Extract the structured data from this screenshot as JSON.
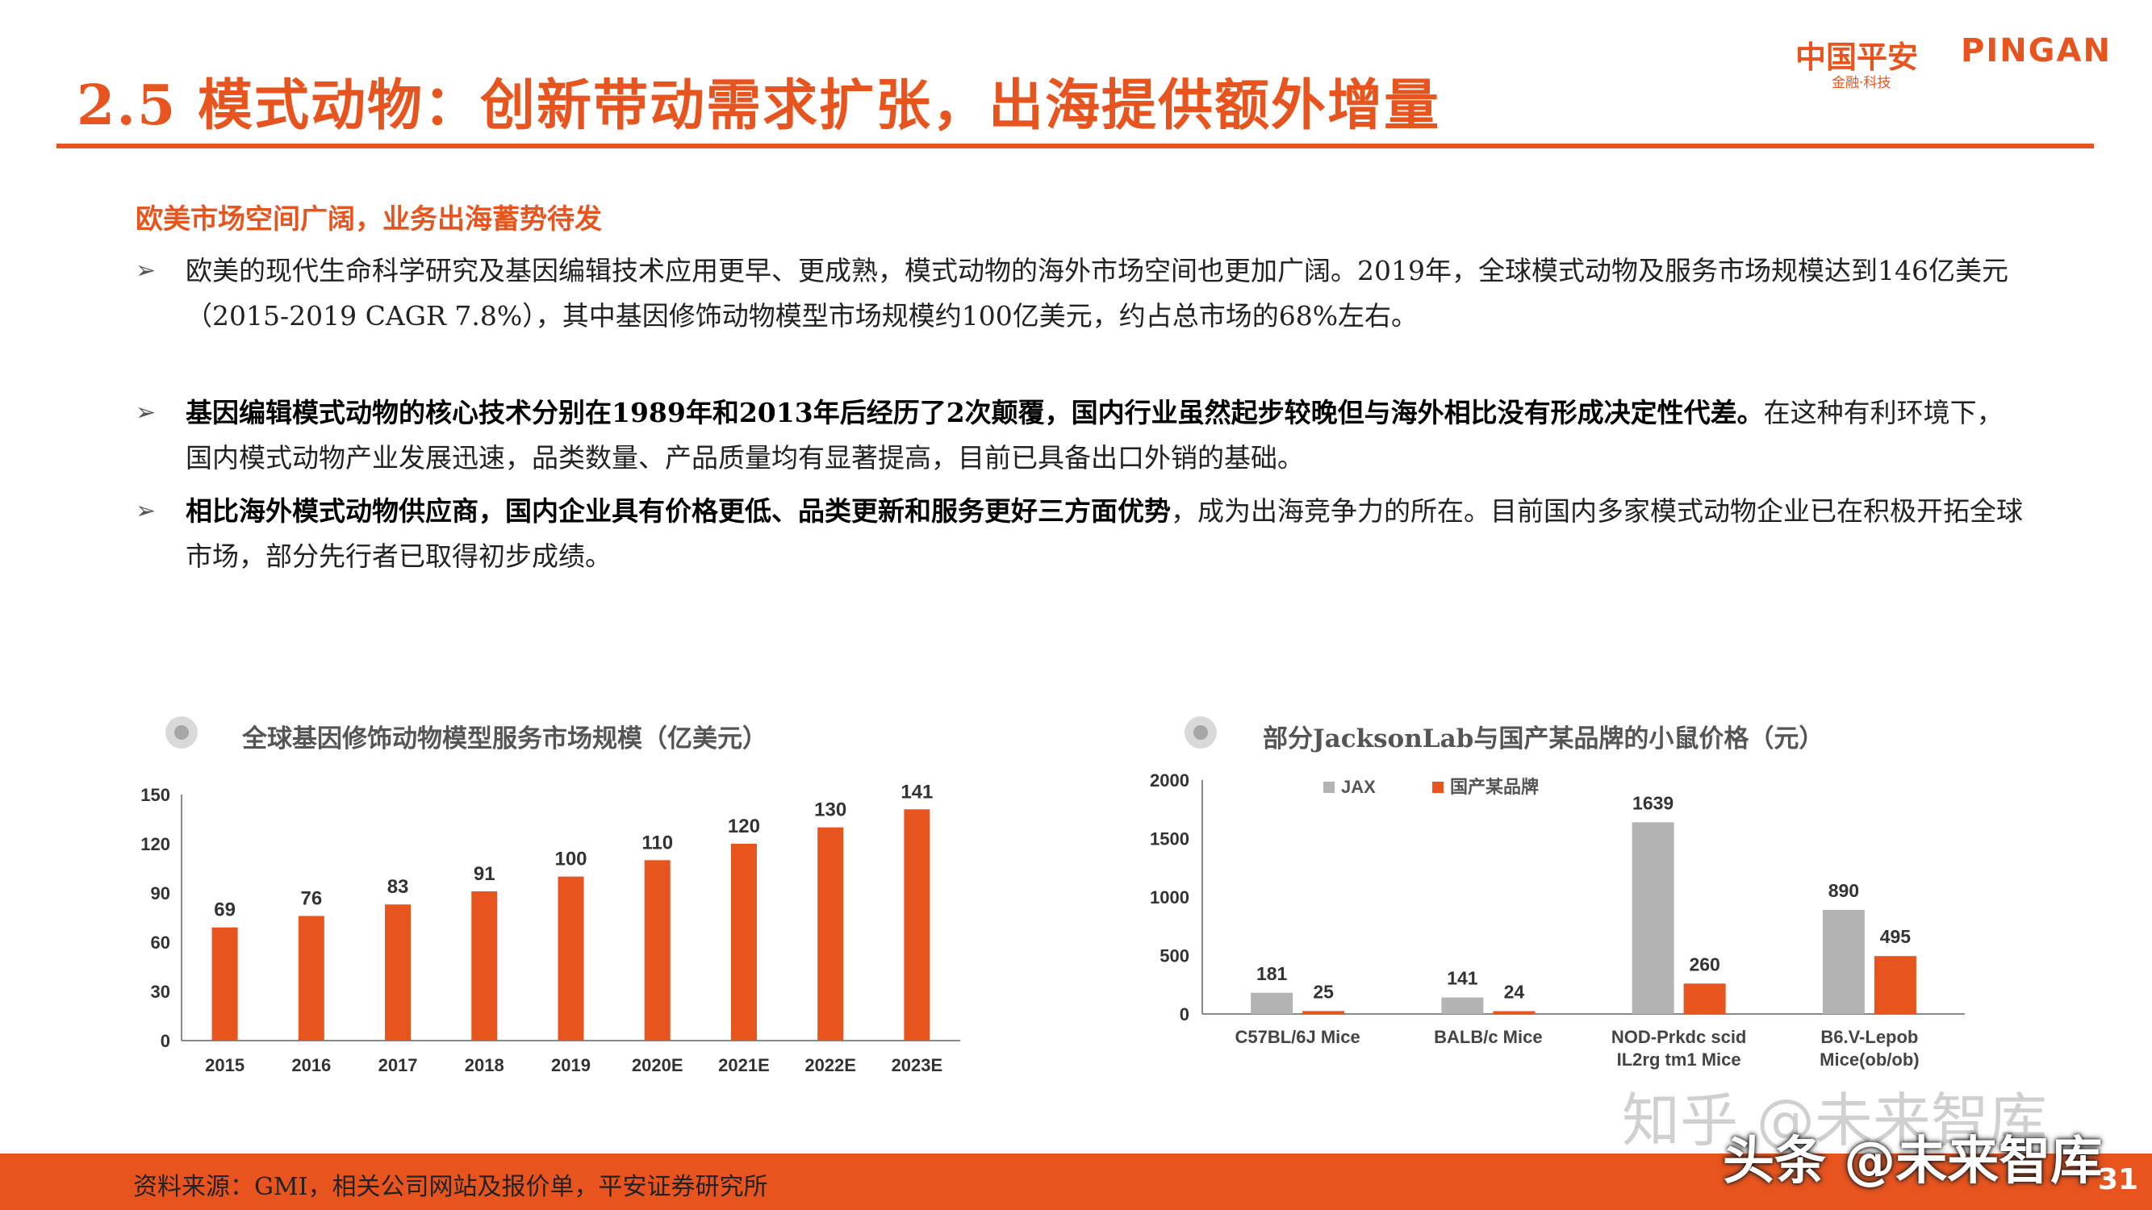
{
  "header": {
    "title": "2.5 模式动物：创新带动需求扩张，出海提供额外增量",
    "logo_cn": "中国平安",
    "logo_en": "PINGAN",
    "logo_sub": "金融·科技"
  },
  "section": {
    "subheading": "欧美市场空间广阔，业务出海蓄势待发",
    "bullets": [
      {
        "bold": "",
        "text": "欧美的现代生命科学研究及基因编辑技术应用更早、更成熟，模式动物的海外市场空间也更加广阔。2019年，全球模式动物及服务市场规模达到146亿美元（2015-2019 CAGR 7.8%），其中基因修饰动物模型市场规模约100亿美元，约占总市场的68%左右。"
      },
      {
        "bold": "基因编辑模式动物的核心技术分别在1989年和2013年后经历了2次颠覆，国内行业虽然起步较晚但与海外相比没有形成决定性代差。",
        "text": "在这种有利环境下，国内模式动物产业发展迅速，品类数量、产品质量均有显著提高，目前已具备出口外销的基础。"
      },
      {
        "bold": "相比海外模式动物供应商，国内企业具有价格更低、品类更新和服务更好三方面优势",
        "text": "，成为出海竞争力的所在。目前国内多家模式动物企业已在积极开拓全球市场，部分先行者已取得初步成绩。"
      }
    ]
  },
  "chart_data": [
    {
      "type": "bar",
      "title": "全球基因修饰动物模型服务市场规模（亿美元）",
      "categories": [
        "2015",
        "2016",
        "2017",
        "2018",
        "2019",
        "2020E",
        "2021E",
        "2022E",
        "2023E"
      ],
      "values": [
        69,
        76,
        83,
        91,
        100,
        110,
        120,
        130,
        141
      ],
      "ylim": [
        0,
        150
      ],
      "yticks": [
        "0",
        "30",
        "60",
        "90",
        "120",
        "150"
      ],
      "color": "#e8541e",
      "grid": false
    },
    {
      "type": "bar",
      "title": "部分JacksonLab与国产某品牌的小鼠价格（元）",
      "categories": [
        "C57BL/6J Mice",
        "BALB/c Mice",
        "NOD-Prkdc scid IL2rg tm1 Mice",
        "B6.V-Lepob Mice(ob/ob)"
      ],
      "category_lines": [
        [
          "C57BL/6J Mice"
        ],
        [
          "BALB/c Mice"
        ],
        [
          "NOD-Prkdc scid",
          "IL2rg tm1 Mice"
        ],
        [
          "B6.V-Lepob",
          "Mice(ob/ob)"
        ]
      ],
      "series": [
        {
          "name": "JAX",
          "values": [
            181,
            141,
            1639,
            890
          ],
          "color": "#b3b3b3"
        },
        {
          "name": "国产某品牌",
          "values": [
            25,
            24,
            260,
            495
          ],
          "color": "#e8541e"
        }
      ],
      "ylim": [
        0,
        2000
      ],
      "yticks": [
        "0",
        "500",
        "1000",
        "1500",
        "2000"
      ],
      "legend": "top-left",
      "grid": false
    }
  ],
  "footer": {
    "source": "资料来源：GMI，相关公司网站及报价单，平安证券研究所",
    "page": "31",
    "watermark_zhihu": "知乎 @未来智库",
    "watermark_toutiao": "头条 @未来智库"
  }
}
